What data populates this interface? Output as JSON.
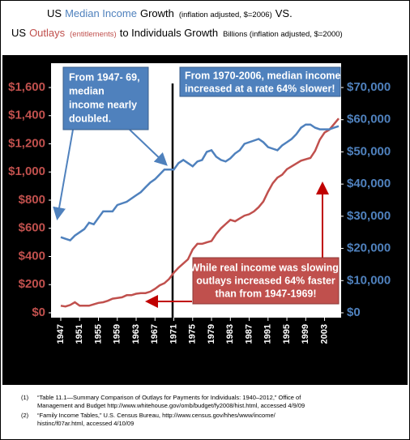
{
  "chart_data": {
    "type": "line",
    "title_lines": [
      [
        {
          "text": "US",
          "color": "#000000"
        },
        {
          "text": "Median Income",
          "color": "#4f81bd"
        },
        {
          "text": "Growth",
          "color": "#000000"
        },
        {
          "text": "(inflation adjusted, $=2006)",
          "color": "#000000",
          "small": true
        },
        {
          "text": "VS.",
          "color": "#000000"
        }
      ],
      [
        {
          "text": "US",
          "color": "#000000"
        },
        {
          "text": "Outlays",
          "color": "#c0504d"
        },
        {
          "text": "(entitlements)",
          "color": "#c0504d",
          "small": true
        },
        {
          "text": "to Individuals Growth",
          "color": "#000000"
        },
        {
          "text": "Billions (inflation adjusted, $=2000)",
          "color": "#000000",
          "small": true
        }
      ]
    ],
    "x": [
      1947,
      1948,
      1949,
      1950,
      1951,
      1952,
      1953,
      1954,
      1955,
      1956,
      1957,
      1958,
      1959,
      1960,
      1961,
      1962,
      1963,
      1964,
      1965,
      1966,
      1967,
      1968,
      1969,
      1970,
      1971,
      1972,
      1973,
      1974,
      1975,
      1976,
      1977,
      1978,
      1979,
      1980,
      1981,
      1982,
      1983,
      1984,
      1985,
      1986,
      1987,
      1988,
      1989,
      1990,
      1991,
      1992,
      1993,
      1994,
      1995,
      1996,
      1997,
      1998,
      1999,
      2000,
      2001,
      2002,
      2003,
      2004,
      2005,
      2006
    ],
    "series": [
      {
        "name": "Outlays",
        "color": "#c0504d",
        "axis": "y",
        "values": [
          50,
          45,
          55,
          75,
          50,
          50,
          50,
          60,
          70,
          75,
          85,
          100,
          105,
          110,
          125,
          125,
          135,
          140,
          140,
          150,
          170,
          195,
          210,
          240,
          285,
          320,
          350,
          380,
          450,
          490,
          490,
          500,
          510,
          560,
          600,
          630,
          660,
          650,
          670,
          690,
          700,
          720,
          750,
          790,
          860,
          920,
          960,
          980,
          1020,
          1040,
          1060,
          1080,
          1090,
          1100,
          1150,
          1230,
          1280,
          1300,
          1340,
          1380
        ]
      },
      {
        "name": "Median Income",
        "color": "#4f81bd",
        "axis": "y2",
        "values": [
          23500,
          23000,
          22500,
          24000,
          25000,
          26000,
          28000,
          27500,
          29500,
          31500,
          31500,
          31500,
          33500,
          34000,
          34500,
          35500,
          36500,
          37500,
          39000,
          40500,
          41500,
          43000,
          44500,
          44500,
          44500,
          46500,
          47500,
          46500,
          45500,
          47000,
          47500,
          50000,
          50500,
          48500,
          47500,
          47000,
          48000,
          49500,
          50500,
          52500,
          53000,
          53500,
          54000,
          53000,
          51500,
          51000,
          50500,
          52000,
          53000,
          54000,
          55500,
          57500,
          58500,
          58500,
          57500,
          57000,
          57000,
          57000,
          57500,
          58000
        ]
      }
    ],
    "xlim": [
      1947,
      2006
    ],
    "xticks": [
      1947,
      1951,
      1955,
      1959,
      1963,
      1967,
      1971,
      1975,
      1979,
      1983,
      1987,
      1991,
      1995,
      1999,
      2003
    ],
    "ylim": [
      0,
      1600
    ],
    "yticks": [
      {
        "value": 0,
        "label": "$0"
      },
      {
        "value": 200,
        "label": "$200"
      },
      {
        "value": 400,
        "label": "$400"
      },
      {
        "value": 600,
        "label": "$600"
      },
      {
        "value": 800,
        "label": "$800"
      },
      {
        "value": 1000,
        "label": "$1,000"
      },
      {
        "value": 1200,
        "label": "$1,200"
      },
      {
        "value": 1400,
        "label": "$1,400"
      },
      {
        "value": 1600,
        "label": "$1,600"
      }
    ],
    "y2lim": [
      0,
      70000
    ],
    "y2ticks": [
      {
        "value": 0,
        "label": "$0"
      },
      {
        "value": 10000,
        "label": "$10,000"
      },
      {
        "value": 20000,
        "label": "$20,000"
      },
      {
        "value": 30000,
        "label": "$30,000"
      },
      {
        "value": 40000,
        "label": "$40,000"
      },
      {
        "value": 50000,
        "label": "$50,000"
      },
      {
        "value": 60000,
        "label": "$60,000"
      },
      {
        "value": 70000,
        "label": "$70,000"
      }
    ],
    "annotations": [
      {
        "lines": [
          "From 1947- 69,",
          "median",
          "income nearly",
          "doubled."
        ]
      },
      {
        "lines": [
          "From 1970-2006, median income",
          "increased at a rate 64% slower!"
        ]
      },
      {
        "lines": [
          "While real income was slowing,",
          "outlays increased 64% faster",
          "than from 1947-1969!"
        ]
      }
    ],
    "footnotes": [
      {
        "marker": "(1)",
        "lines": [
          "“Table 11.1—Summary Comparison of Outlays for Payments for Individuals: 1940–2012,” Office of",
          "Management and Budget http://www.whitehouse.gov/omb/budget/fy2008/hist.html, accessed 4/9/09"
        ]
      },
      {
        "marker": "(2)",
        "lines": [
          "“Family Income Tables,” U.S. Census Bureau, http://www.census.gov/hhes/www/income/",
          "histinc/f07ar.html, accessed 4/10/09"
        ]
      }
    ]
  }
}
